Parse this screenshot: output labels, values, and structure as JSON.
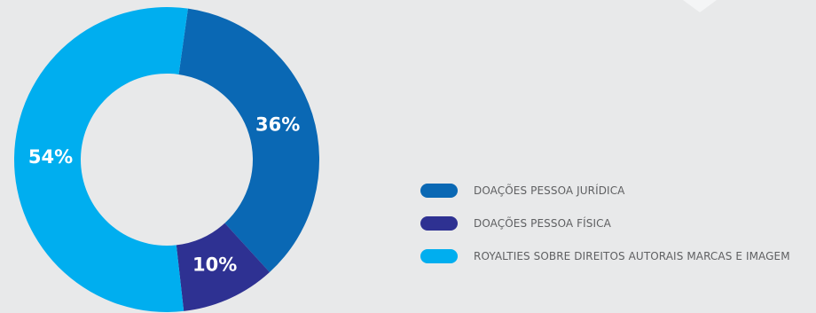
{
  "chart_data": {
    "type": "pie",
    "style": "donut",
    "categories": [
      "DOAÇÕES PESSOA JURÍDICA",
      "DOAÇÕES PESSOA FÍSICA",
      "ROYALTIES SOBRE DIREITOS AUTORAIS MARCAS E IMAGEM"
    ],
    "values": [
      36,
      10,
      54
    ],
    "labels": [
      "36%",
      "10%",
      "54%"
    ],
    "colors": [
      "#0a68b4",
      "#2e3192",
      "#00aeef"
    ],
    "legend_position": "right"
  },
  "theme": {
    "background": "#e8e9ea",
    "label_color": "#ffffff",
    "legend_text_color": "#5f6062"
  }
}
